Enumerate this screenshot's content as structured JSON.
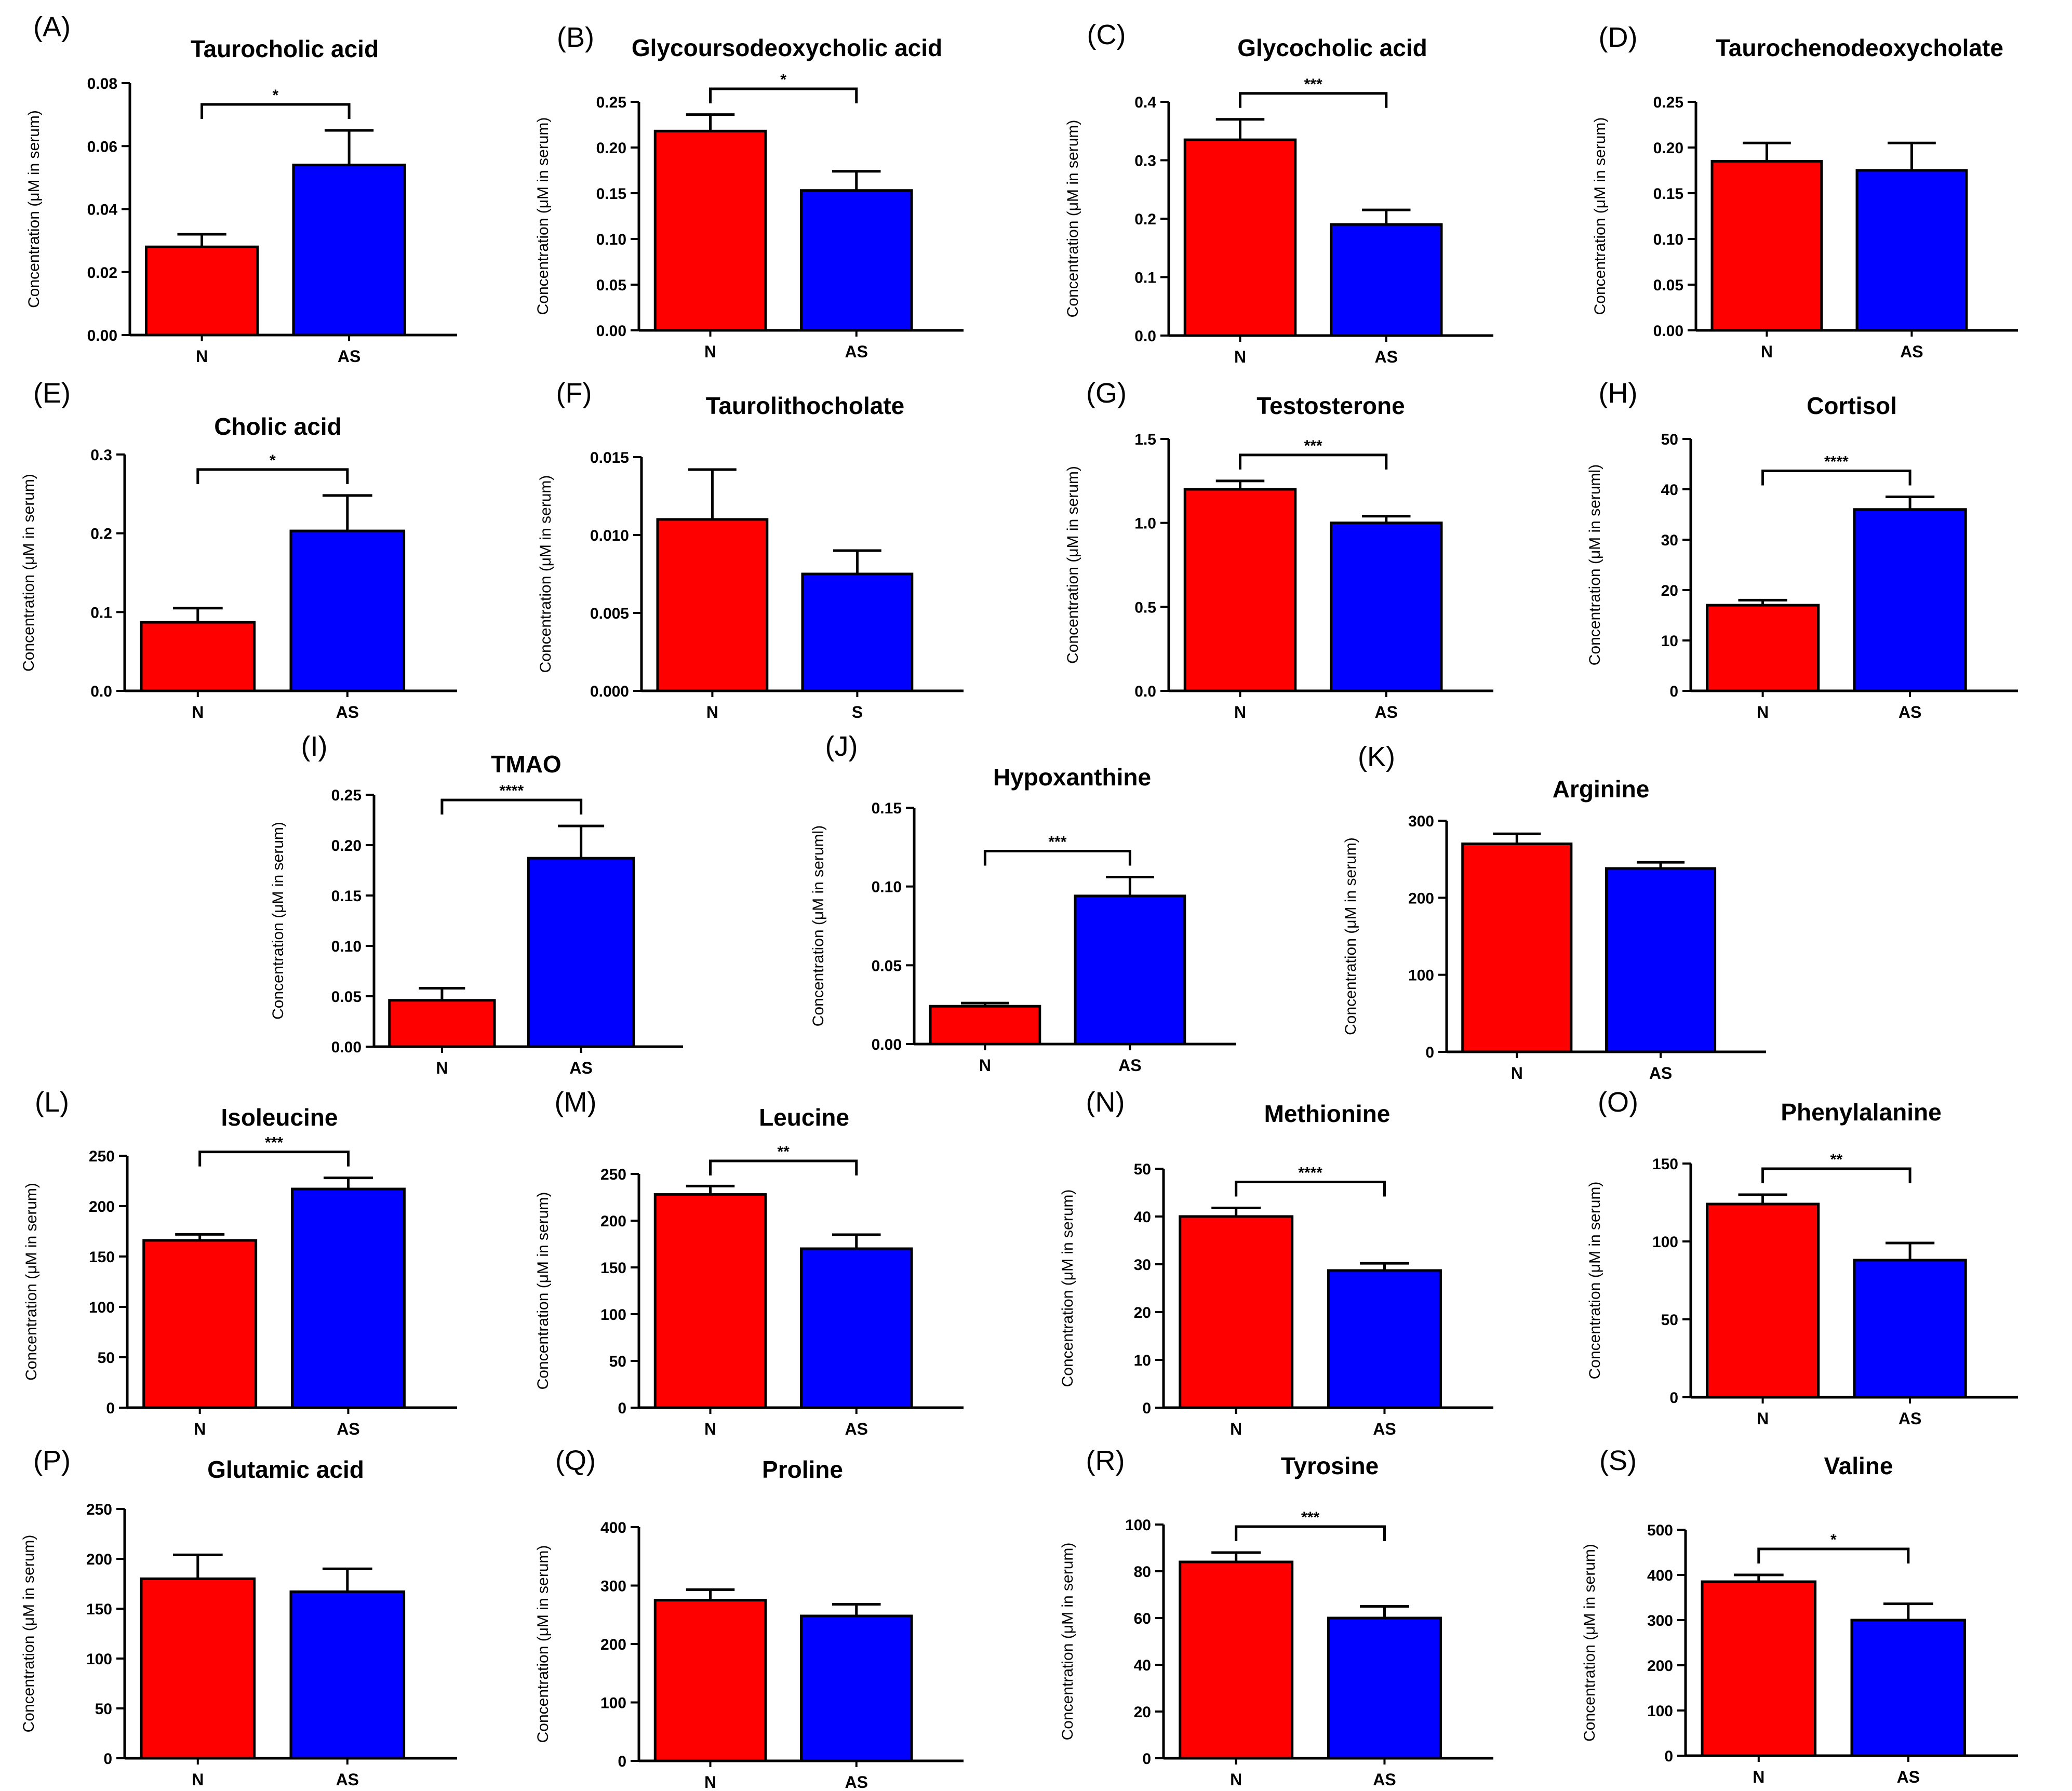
{
  "figure": {
    "charts_note": "19 bar charts comparing serum metabolite concentrations between groups"
  },
  "colors": {
    "group1": "#ff0000",
    "group2": "#0000ff",
    "outline": "#000000"
  },
  "chart_data": [
    {
      "panel": "(A)",
      "type": "bar",
      "title": "Taurocholic acid",
      "ylabel": "Concentration (μM in serum)",
      "categories": [
        "N",
        "AS"
      ],
      "values": [
        0.028,
        0.054
      ],
      "errors": [
        0.004,
        0.011
      ],
      "ylim": [
        0,
        0.08
      ],
      "yticks": [
        "0.00",
        "0.02",
        "0.04",
        "0.06",
        "0.08"
      ],
      "significance": "*"
    },
    {
      "panel": "(B)",
      "type": "bar",
      "title": "Glycoursodeoxycholic acid",
      "ylabel": "Concentration (μM in serum)",
      "categories": [
        "N",
        "AS"
      ],
      "values": [
        0.218,
        0.153
      ],
      "errors": [
        0.018,
        0.021
      ],
      "ylim": [
        0,
        0.25
      ],
      "yticks": [
        "0.00",
        "0.05",
        "0.10",
        "0.15",
        "0.20",
        "0.25"
      ],
      "significance": "*"
    },
    {
      "panel": "(C)",
      "type": "bar",
      "title": "Glycocholic acid",
      "ylabel": "Concentration (μM in serum)",
      "categories": [
        "N",
        "AS"
      ],
      "values": [
        0.335,
        0.19
      ],
      "errors": [
        0.035,
        0.025
      ],
      "ylim": [
        0,
        0.4
      ],
      "yticks": [
        "0.0",
        "0.1",
        "0.2",
        "0.3",
        "0.4"
      ],
      "significance": "***"
    },
    {
      "panel": "(D)",
      "type": "bar",
      "title": "Taurochenodeoxycholate",
      "ylabel": "Concentration (μM in serum)",
      "categories": [
        "N",
        "AS"
      ],
      "values": [
        0.185,
        0.175
      ],
      "errors": [
        0.02,
        0.03
      ],
      "ylim": [
        0,
        0.25
      ],
      "yticks": [
        "0.00",
        "0.05",
        "0.10",
        "0.15",
        "0.20",
        "0.25"
      ],
      "significance": ""
    },
    {
      "panel": "(E)",
      "type": "bar",
      "title": "Cholic acid",
      "ylabel": "Concentration (μM in serum)",
      "categories": [
        "N",
        "AS"
      ],
      "values": [
        0.087,
        0.203
      ],
      "errors": [
        0.018,
        0.045
      ],
      "ylim": [
        0,
        0.3
      ],
      "yticks": [
        "0.0",
        "0.1",
        "0.2",
        "0.3"
      ],
      "significance": "*"
    },
    {
      "panel": "(F)",
      "type": "bar",
      "title": "Taurolithocholate",
      "ylabel": "Concentration (μM in serum)",
      "categories": [
        "N",
        "S"
      ],
      "values": [
        0.011,
        0.0075
      ],
      "errors": [
        0.0032,
        0.0015
      ],
      "ylim": [
        0,
        0.015
      ],
      "yticks": [
        "0.000",
        "0.005",
        "0.010",
        "0.015"
      ],
      "significance": ""
    },
    {
      "panel": "(G)",
      "type": "bar",
      "title": "Testosterone",
      "ylabel": "Concentration (μM in serum)",
      "categories": [
        "N",
        "AS"
      ],
      "values": [
        1.2,
        1.0
      ],
      "errors": [
        0.05,
        0.04
      ],
      "ylim": [
        0,
        1.5
      ],
      "yticks": [
        "0.0",
        "0.5",
        "1.0",
        "1.5"
      ],
      "significance": "***"
    },
    {
      "panel": "(H)",
      "type": "bar",
      "title": "Cortisol",
      "ylabel": "Concentration (μM in seruml)",
      "categories": [
        "N",
        "AS"
      ],
      "values": [
        17,
        36
      ],
      "errors": [
        1,
        2.5
      ],
      "ylim": [
        0,
        50
      ],
      "yticks": [
        "0",
        "10",
        "20",
        "30",
        "40",
        "50"
      ],
      "significance": "****"
    },
    {
      "panel": "(I)",
      "type": "bar",
      "title": "TMAO",
      "ylabel": "Concentration (μM in serum)",
      "categories": [
        "N",
        "AS"
      ],
      "values": [
        0.046,
        0.187
      ],
      "errors": [
        0.012,
        0.032
      ],
      "ylim": [
        0,
        0.25
      ],
      "yticks": [
        "0.00",
        "0.05",
        "0.10",
        "0.15",
        "0.20",
        "0.25"
      ],
      "significance": "****"
    },
    {
      "panel": "(J)",
      "type": "bar",
      "title": "Hypoxanthine",
      "ylabel": "Concentration (μM in seruml)",
      "categories": [
        "N",
        "AS"
      ],
      "values": [
        0.024,
        0.094
      ],
      "errors": [
        0.002,
        0.012
      ],
      "ylim": [
        0,
        0.15
      ],
      "yticks": [
        "0.00",
        "0.05",
        "0.10",
        "0.15"
      ],
      "significance": "***"
    },
    {
      "panel": "(K)",
      "type": "bar",
      "title": "Arginine",
      "ylabel": "Concentration (μM in serum)",
      "categories": [
        "N",
        "AS"
      ],
      "values": [
        270,
        238
      ],
      "errors": [
        13,
        8
      ],
      "ylim": [
        0,
        300
      ],
      "yticks": [
        "0",
        "100",
        "200",
        "300"
      ],
      "significance": ""
    },
    {
      "panel": "(L)",
      "type": "bar",
      "title": "Isoleucine",
      "ylabel": "Concentration (μM in serum)",
      "categories": [
        "N",
        "AS"
      ],
      "values": [
        166,
        217
      ],
      "errors": [
        6,
        11
      ],
      "ylim": [
        0,
        250
      ],
      "yticks": [
        "0",
        "50",
        "100",
        "150",
        "200",
        "250"
      ],
      "significance": "***"
    },
    {
      "panel": "(M)",
      "type": "bar",
      "title": "Leucine",
      "ylabel": "Concentration (μM in serum)",
      "categories": [
        "N",
        "AS"
      ],
      "values": [
        228,
        170
      ],
      "errors": [
        9,
        15
      ],
      "ylim": [
        0,
        250
      ],
      "yticks": [
        "0",
        "50",
        "100",
        "150",
        "200",
        "250"
      ],
      "significance": "**"
    },
    {
      "panel": "(N)",
      "type": "bar",
      "title": "Methionine",
      "ylabel": "Concentration (μM in serum)",
      "categories": [
        "N",
        "AS"
      ],
      "values": [
        40,
        28.7
      ],
      "errors": [
        1.8,
        1.5
      ],
      "ylim": [
        0,
        50
      ],
      "yticks": [
        "0",
        "10",
        "20",
        "30",
        "40",
        "50"
      ],
      "significance": "****"
    },
    {
      "panel": "(O)",
      "type": "bar",
      "title": "Phenylalanine",
      "ylabel": "Concentration (μM in serum)",
      "categories": [
        "N",
        "AS"
      ],
      "values": [
        124,
        88
      ],
      "errors": [
        6,
        11
      ],
      "ylim": [
        0,
        150
      ],
      "yticks": [
        "0",
        "50",
        "100",
        "150"
      ],
      "significance": "**"
    },
    {
      "panel": "(P)",
      "type": "bar",
      "title": "Glutamic acid",
      "ylabel": "Concentration (μM in serum)",
      "categories": [
        "N",
        "AS"
      ],
      "values": [
        180,
        167
      ],
      "errors": [
        24,
        23
      ],
      "ylim": [
        0,
        250
      ],
      "yticks": [
        "0",
        "50",
        "100",
        "150",
        "200",
        "250"
      ],
      "significance": ""
    },
    {
      "panel": "(Q)",
      "type": "bar",
      "title": "Proline",
      "ylabel": "Concentration (μM in serum)",
      "categories": [
        "N",
        "AS"
      ],
      "values": [
        275,
        248
      ],
      "errors": [
        18,
        20
      ],
      "ylim": [
        0,
        400
      ],
      "yticks": [
        "0",
        "100",
        "200",
        "300",
        "400"
      ],
      "significance": ""
    },
    {
      "panel": "(R)",
      "type": "bar",
      "title": "Tyrosine",
      "ylabel": "Concentration (μM in serum)",
      "categories": [
        "N",
        "AS"
      ],
      "values": [
        84,
        60
      ],
      "errors": [
        4,
        5
      ],
      "ylim": [
        0,
        100
      ],
      "yticks": [
        "0",
        "20",
        "40",
        "60",
        "80",
        "100"
      ],
      "significance": "***"
    },
    {
      "panel": "(S)",
      "type": "bar",
      "title": "Valine",
      "ylabel": "Concentration (μM in serum)",
      "categories": [
        "N",
        "AS"
      ],
      "values": [
        385,
        300
      ],
      "errors": [
        15,
        36
      ],
      "ylim": [
        0,
        500
      ],
      "yticks": [
        "0",
        "100",
        "200",
        "300",
        "400",
        "500"
      ],
      "significance": "*"
    }
  ]
}
